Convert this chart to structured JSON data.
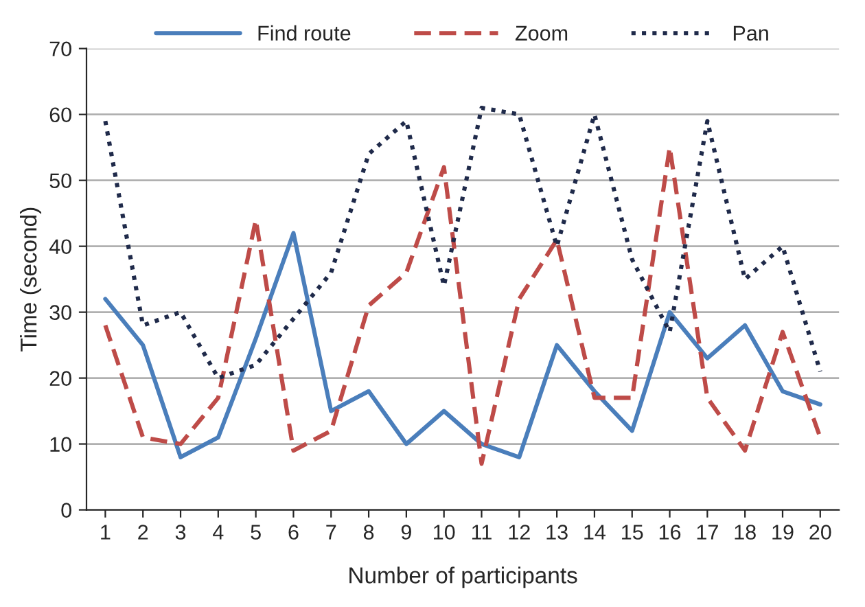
{
  "chart_data": {
    "type": "line",
    "xlabel": "Number of participants",
    "ylabel": "Time (second)",
    "categories": [
      "1",
      "2",
      "3",
      "4",
      "5",
      "6",
      "7",
      "8",
      "9",
      "10",
      "11",
      "12",
      "13",
      "14",
      "15",
      "16",
      "17",
      "18",
      "19",
      "20"
    ],
    "series": [
      {
        "name": "Find route",
        "color": "#4a7ebb",
        "line_style": "solid",
        "values": [
          32,
          25,
          8,
          11,
          26,
          42,
          15,
          18,
          10,
          15,
          10,
          8,
          25,
          18,
          12,
          30,
          23,
          28,
          18,
          16
        ]
      },
      {
        "name": "Zoom",
        "color": "#be4b48",
        "line_style": "dashed",
        "values": [
          28,
          11,
          10,
          17,
          44,
          9,
          12,
          31,
          36,
          52,
          7,
          32,
          41,
          17,
          17,
          55,
          17,
          9,
          27,
          11
        ]
      },
      {
        "name": "Pan",
        "color": "#1f2a4a",
        "line_style": "dotted",
        "values": [
          59,
          28,
          30,
          20,
          22,
          29,
          36,
          54,
          59,
          34,
          61,
          60,
          40,
          60,
          38,
          27,
          59,
          35,
          40,
          21
        ]
      }
    ],
    "ylim": [
      0,
      70
    ],
    "yticks": [
      0,
      10,
      20,
      30,
      40,
      50,
      60,
      70
    ],
    "grid": "y",
    "legend": "top",
    "marker": "none"
  }
}
